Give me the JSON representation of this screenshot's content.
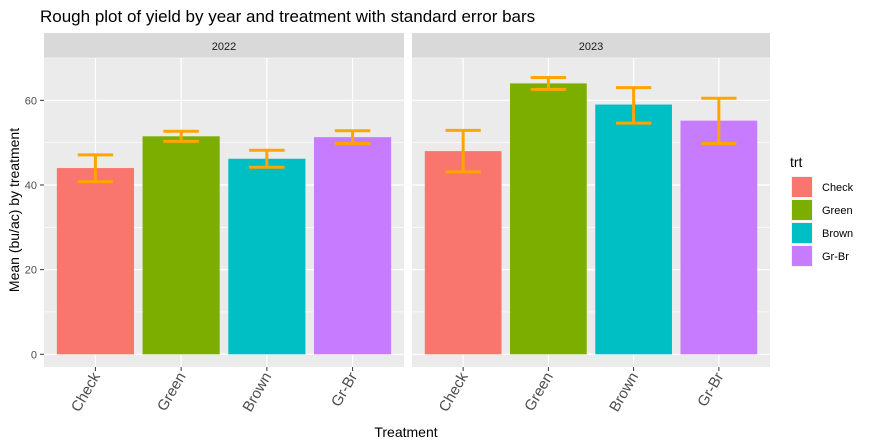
{
  "chart_data": {
    "type": "bar",
    "title": "Rough plot of yield by year and treatment with standard error bars",
    "xlabel": "Treatment",
    "ylabel": "Mean (bu/ac) by treatment",
    "ylim": [
      -3,
      70
    ],
    "yticks": [
      0,
      20,
      40,
      60
    ],
    "categories": [
      "Check",
      "Green",
      "Brown",
      "Gr-Br"
    ],
    "legend": {
      "title": "trt",
      "position": "right",
      "entries": [
        "Check",
        "Green",
        "Brown",
        "Gr-Br"
      ],
      "colors": [
        "#F8766D",
        "#7CAE00",
        "#00BFC4",
        "#C77CFF"
      ]
    },
    "error_bar_color": "#FFA500",
    "facets": [
      {
        "label": "2022",
        "values": [
          44.0,
          51.5,
          46.2,
          51.3
        ],
        "error_low": [
          40.8,
          50.3,
          44.2,
          49.8
        ],
        "error_high": [
          47.1,
          52.7,
          48.2,
          52.8
        ]
      },
      {
        "label": "2023",
        "values": [
          48.0,
          64.0,
          59.0,
          55.2
        ],
        "error_low": [
          43.1,
          62.6,
          54.6,
          49.8
        ],
        "error_high": [
          52.9,
          65.4,
          63.0,
          60.5
        ]
      }
    ],
    "grid": true
  }
}
